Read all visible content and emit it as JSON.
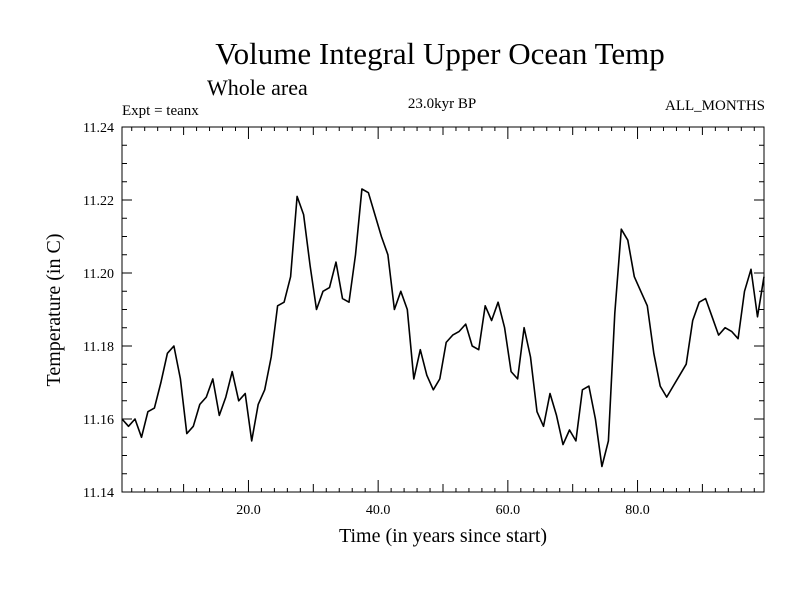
{
  "chart_data": {
    "type": "line",
    "title": "Volume Integral Upper Ocean Temp",
    "subtitle": "Whole area",
    "experiment": "Expt = teanx",
    "period": "23.0kyr BP",
    "months": "ALL_MONTHS",
    "xlabel": "Time (in years since start)",
    "ylabel": "Temperature (in C)",
    "xlim": [
      0.5,
      99.5
    ],
    "ylim": [
      11.14,
      11.24
    ],
    "xticks": [
      20,
      40,
      60,
      80
    ],
    "xtick_labels": [
      "20.0",
      "40.0",
      "60.0",
      "80.0"
    ],
    "yticks": [
      11.14,
      11.16,
      11.18,
      11.2,
      11.22,
      11.24
    ],
    "ytick_labels": [
      "11.14",
      "11.16",
      "11.18",
      "11.20",
      "11.22",
      "11.24"
    ],
    "grid": false,
    "series": [
      {
        "name": "Temperature",
        "x": [
          0.5,
          1.5,
          2.5,
          3.5,
          4.5,
          5.5,
          6.5,
          7.5,
          8.5,
          9.5,
          10.5,
          11.5,
          12.5,
          13.5,
          14.5,
          15.5,
          16.5,
          17.5,
          18.5,
          19.5,
          20.5,
          21.5,
          22.5,
          23.5,
          24.5,
          25.5,
          26.5,
          27.5,
          28.5,
          29.5,
          30.5,
          31.5,
          32.5,
          33.5,
          34.5,
          35.5,
          36.5,
          37.5,
          38.5,
          39.5,
          40.5,
          41.5,
          42.5,
          43.5,
          44.5,
          45.5,
          46.5,
          47.5,
          48.5,
          49.5,
          50.5,
          51.5,
          52.5,
          53.5,
          54.5,
          55.5,
          56.5,
          57.5,
          58.5,
          59.5,
          60.5,
          61.5,
          62.5,
          63.5,
          64.5,
          65.5,
          66.5,
          67.5,
          68.5,
          69.5,
          70.5,
          71.5,
          72.5,
          73.5,
          74.5,
          75.5,
          76.5,
          77.5,
          78.5,
          79.5,
          80.5,
          81.5,
          82.5,
          83.5,
          84.5,
          85.5,
          86.5,
          87.5,
          88.5,
          89.5,
          90.5,
          91.5,
          92.5,
          93.5,
          94.5,
          95.5,
          96.5,
          97.5,
          98.5,
          99.5
        ],
        "values": [
          11.16,
          11.158,
          11.16,
          11.155,
          11.162,
          11.163,
          11.17,
          11.178,
          11.18,
          11.171,
          11.156,
          11.158,
          11.164,
          11.166,
          11.171,
          11.161,
          11.166,
          11.173,
          11.165,
          11.167,
          11.154,
          11.164,
          11.168,
          11.177,
          11.191,
          11.192,
          11.199,
          11.221,
          11.216,
          11.202,
          11.19,
          11.195,
          11.196,
          11.203,
          11.193,
          11.192,
          11.205,
          11.223,
          11.222,
          11.216,
          11.21,
          11.205,
          11.19,
          11.195,
          11.19,
          11.171,
          11.179,
          11.172,
          11.168,
          11.171,
          11.181,
          11.183,
          11.184,
          11.186,
          11.18,
          11.179,
          11.191,
          11.187,
          11.192,
          11.185,
          11.173,
          11.171,
          11.185,
          11.177,
          11.162,
          11.158,
          11.167,
          11.161,
          11.153,
          11.157,
          11.154,
          11.168,
          11.169,
          11.16,
          11.147,
          11.154,
          11.189,
          11.212,
          11.209,
          11.199,
          11.195,
          11.191,
          11.178,
          11.169,
          11.166,
          11.169,
          11.172,
          11.175,
          11.187,
          11.192,
          11.193,
          11.188,
          11.183,
          11.185,
          11.184,
          11.182,
          11.195,
          11.201,
          11.188,
          11.199
        ]
      }
    ]
  }
}
